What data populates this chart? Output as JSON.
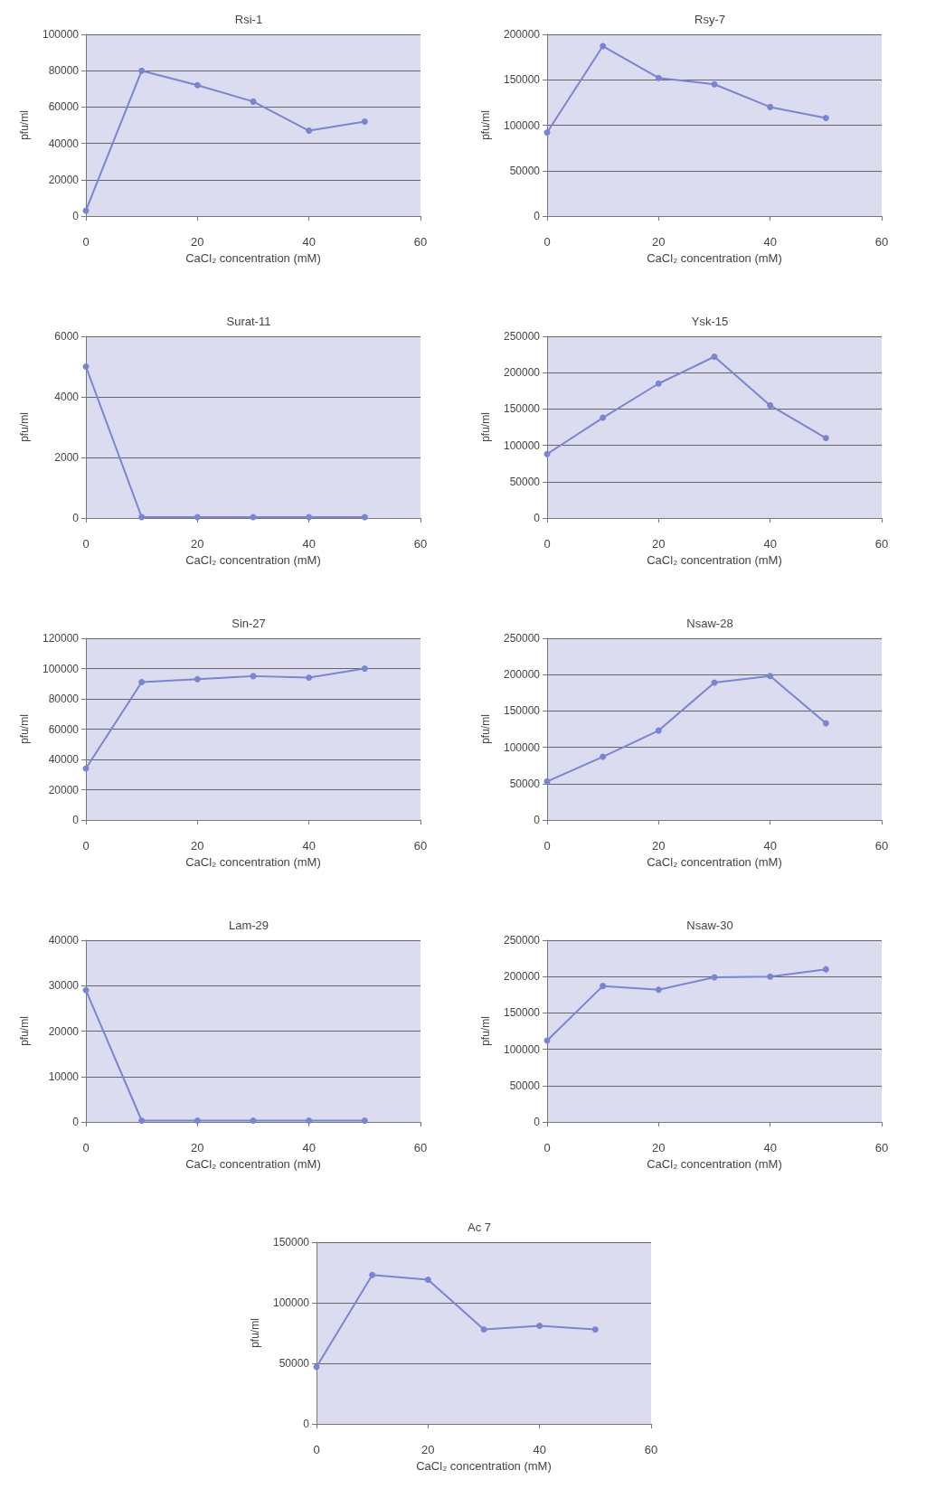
{
  "chart_data": [
    {
      "type": "line",
      "title": "Rsi-1",
      "xlabel": "CaCl₂ concentration (mM)",
      "ylabel": "pfu/ml",
      "x": [
        0,
        10,
        20,
        30,
        40,
        50
      ],
      "series": [
        {
          "color": "#7b84d0",
          "values": [
            3000,
            80000,
            72000,
            63000,
            47000,
            52000
          ]
        }
      ],
      "xlim": [
        0,
        60
      ],
      "xticks": [
        0,
        20,
        40,
        60
      ],
      "ylim": [
        0,
        100000
      ],
      "yticks": [
        0,
        20000,
        40000,
        60000,
        80000,
        100000
      ],
      "grid": "y",
      "marker": "circle"
    },
    {
      "type": "line",
      "title": "Rsy-7",
      "xlabel": "CaCl₂ concentration (mM)",
      "ylabel": "pfu/ml",
      "x": [
        0,
        10,
        20,
        30,
        40,
        50
      ],
      "series": [
        {
          "color": "#7b84d0",
          "values": [
            92000,
            187000,
            152000,
            145000,
            120000,
            108000
          ]
        }
      ],
      "xlim": [
        0,
        60
      ],
      "xticks": [
        0,
        20,
        40,
        60
      ],
      "ylim": [
        0,
        200000
      ],
      "yticks": [
        0,
        50000,
        100000,
        150000,
        200000
      ],
      "grid": "y",
      "marker": "circle"
    },
    {
      "type": "line",
      "title": "Surat-11",
      "xlabel": "CaCl₂ concentration (mM)",
      "ylabel": "pfu/ml",
      "x": [
        0,
        10,
        20,
        30,
        40,
        50
      ],
      "series": [
        {
          "color": "#7b84d0",
          "values": [
            5000,
            30,
            30,
            30,
            30,
            30
          ]
        }
      ],
      "xlim": [
        0,
        60
      ],
      "xticks": [
        0,
        20,
        40,
        60
      ],
      "ylim": [
        0,
        6000
      ],
      "yticks": [
        0,
        2000,
        4000,
        6000
      ],
      "grid": "y",
      "marker": "circle"
    },
    {
      "type": "line",
      "title": "Ysk-15",
      "xlabel": "CaCl₂ concentration (mM)",
      "ylabel": "pfu/ml",
      "x": [
        0,
        10,
        20,
        30,
        40,
        50
      ],
      "series": [
        {
          "color": "#7b84d0",
          "values": [
            88000,
            138000,
            185000,
            222000,
            155000,
            110000
          ]
        }
      ],
      "xlim": [
        0,
        60
      ],
      "xticks": [
        0,
        20,
        40,
        60
      ],
      "ylim": [
        0,
        250000
      ],
      "yticks": [
        0,
        50000,
        100000,
        150000,
        200000,
        250000
      ],
      "grid": "y",
      "marker": "circle"
    },
    {
      "type": "line",
      "title": "Sin-27",
      "xlabel": "CaCl₂ concentration (mM)",
      "ylabel": "pfu/ml",
      "x": [
        0,
        10,
        20,
        30,
        40,
        50
      ],
      "series": [
        {
          "color": "#7b84d0",
          "values": [
            34000,
            91000,
            93000,
            95000,
            94000,
            100000
          ]
        }
      ],
      "xlim": [
        0,
        60
      ],
      "xticks": [
        0,
        20,
        40,
        60
      ],
      "ylim": [
        0,
        120000
      ],
      "yticks": [
        0,
        20000,
        40000,
        60000,
        80000,
        100000,
        120000
      ],
      "grid": "y",
      "marker": "circle"
    },
    {
      "type": "line",
      "title": "Nsaw-28",
      "xlabel": "CaCl₂ concentration (mM)",
      "ylabel": "pfu/ml",
      "x": [
        0,
        10,
        20,
        30,
        40,
        50
      ],
      "series": [
        {
          "color": "#7b84d0",
          "values": [
            53000,
            87000,
            123000,
            189000,
            198000,
            133000
          ]
        }
      ],
      "xlim": [
        0,
        60
      ],
      "xticks": [
        0,
        20,
        40,
        60
      ],
      "ylim": [
        0,
        250000
      ],
      "yticks": [
        0,
        50000,
        100000,
        150000,
        200000,
        250000
      ],
      "grid": "y",
      "marker": "circle"
    },
    {
      "type": "line",
      "title": "Lam-29",
      "xlabel": "CaCl₂ concentration (mM)",
      "ylabel": "pfu/ml",
      "x": [
        0,
        10,
        20,
        30,
        40,
        50
      ],
      "series": [
        {
          "color": "#7b84d0",
          "values": [
            29000,
            300,
            300,
            300,
            300,
            300
          ]
        }
      ],
      "xlim": [
        0,
        60
      ],
      "xticks": [
        0,
        20,
        40,
        60
      ],
      "ylim": [
        0,
        40000
      ],
      "yticks": [
        0,
        10000,
        20000,
        30000,
        40000
      ],
      "grid": "y",
      "marker": "circle"
    },
    {
      "type": "line",
      "title": "Nsaw-30",
      "xlabel": "CaCl₂ concentration (mM)",
      "ylabel": "pfu/ml",
      "x": [
        0,
        10,
        20,
        30,
        40,
        50
      ],
      "series": [
        {
          "color": "#7b84d0",
          "values": [
            112000,
            187000,
            182000,
            199000,
            200000,
            210000
          ]
        }
      ],
      "xlim": [
        0,
        60
      ],
      "xticks": [
        0,
        20,
        40,
        60
      ],
      "ylim": [
        0,
        250000
      ],
      "yticks": [
        0,
        50000,
        100000,
        150000,
        200000,
        250000
      ],
      "grid": "y",
      "marker": "circle"
    },
    {
      "type": "line",
      "title": "Ac 7",
      "xlabel": "CaCl₂ concentration (mM)",
      "ylabel": "pfu/ml",
      "x": [
        0,
        10,
        20,
        30,
        40,
        50
      ],
      "series": [
        {
          "color": "#7b84d0",
          "values": [
            47000,
            123000,
            119000,
            78000,
            81000,
            78000
          ]
        }
      ],
      "xlim": [
        0,
        60
      ],
      "xticks": [
        0,
        20,
        40,
        60
      ],
      "ylim": [
        0,
        150000
      ],
      "yticks": [
        0,
        50000,
        100000,
        150000
      ],
      "grid": "y",
      "marker": "circle"
    }
  ]
}
